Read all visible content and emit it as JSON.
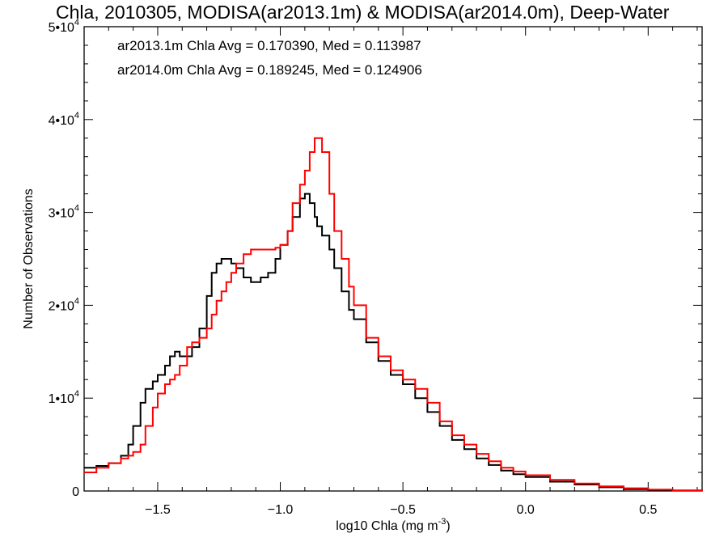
{
  "chart_data": {
    "type": "line",
    "title": "Chla, 2010305, MODISA(ar2013.1m) & MODISA(ar2014.0m), Deep-Water",
    "xlabel": "log10 Chla (mg m",
    "xlabel_sup": "-3",
    "xlabel_tail": ")",
    "ylabel": "Number of Observations",
    "xlim": [
      -1.8,
      0.72
    ],
    "ylim": [
      0,
      50000
    ],
    "xticks": [
      {
        "v": -1.5,
        "label": "−1.5"
      },
      {
        "v": -1.0,
        "label": "−1.0"
      },
      {
        "v": -0.5,
        "label": "−0.5"
      },
      {
        "v": 0.0,
        "label": "0.0"
      },
      {
        "v": 0.5,
        "label": "0.5"
      }
    ],
    "yticks": [
      {
        "v": 0,
        "base": "0",
        "exp": ""
      },
      {
        "v": 10000,
        "base": "1•10",
        "exp": "4"
      },
      {
        "v": 20000,
        "base": "2•10",
        "exp": "4"
      },
      {
        "v": 30000,
        "base": "3•10",
        "exp": "4"
      },
      {
        "v": 40000,
        "base": "4•10",
        "exp": "4"
      },
      {
        "v": 50000,
        "base": "5•10",
        "exp": "4"
      }
    ],
    "annotations": [
      {
        "text": "ar2013.1m Chla Avg = 0.170390, Med = 0.113987",
        "color": "#000000"
      },
      {
        "text": "ar2014.0m Chla Avg = 0.189245, Med = 0.124906",
        "color": "#ff0000"
      }
    ],
    "series": [
      {
        "color": "#000000",
        "x": [
          -1.8,
          -1.75,
          -1.7,
          -1.65,
          -1.62,
          -1.6,
          -1.57,
          -1.55,
          -1.52,
          -1.5,
          -1.47,
          -1.45,
          -1.43,
          -1.41,
          -1.38,
          -1.36,
          -1.33,
          -1.3,
          -1.28,
          -1.26,
          -1.24,
          -1.22,
          -1.2,
          -1.18,
          -1.15,
          -1.12,
          -1.1,
          -1.08,
          -1.05,
          -1.02,
          -1.0,
          -0.97,
          -0.95,
          -0.92,
          -0.9,
          -0.88,
          -0.86,
          -0.85,
          -0.83,
          -0.8,
          -0.78,
          -0.75,
          -0.72,
          -0.7,
          -0.65,
          -0.6,
          -0.55,
          -0.5,
          -0.45,
          -0.4,
          -0.35,
          -0.3,
          -0.25,
          -0.2,
          -0.15,
          -0.1,
          -0.05,
          0.0,
          0.1,
          0.2,
          0.3,
          0.4,
          0.5,
          0.6,
          0.72
        ],
        "y": [
          2500,
          2700,
          3000,
          3800,
          5000,
          7000,
          9500,
          11000,
          11800,
          12500,
          13500,
          14500,
          15000,
          14500,
          14500,
          15500,
          17500,
          21000,
          23500,
          24500,
          25000,
          25000,
          24500,
          24000,
          23000,
          22500,
          22500,
          23000,
          23500,
          25000,
          26500,
          28000,
          29500,
          31500,
          32000,
          31000,
          29500,
          28500,
          27500,
          26000,
          24000,
          21500,
          19500,
          18500,
          16000,
          14000,
          12500,
          11500,
          10000,
          8500,
          7000,
          5500,
          4500,
          3500,
          2800,
          2200,
          1800,
          1500,
          1000,
          700,
          400,
          200,
          100,
          50,
          20
        ]
      },
      {
        "color": "#ff0000",
        "x": [
          -1.8,
          -1.75,
          -1.7,
          -1.65,
          -1.62,
          -1.6,
          -1.57,
          -1.55,
          -1.52,
          -1.5,
          -1.47,
          -1.45,
          -1.43,
          -1.41,
          -1.38,
          -1.36,
          -1.33,
          -1.3,
          -1.28,
          -1.26,
          -1.24,
          -1.22,
          -1.2,
          -1.18,
          -1.15,
          -1.12,
          -1.1,
          -1.08,
          -1.05,
          -1.02,
          -1.0,
          -0.97,
          -0.95,
          -0.92,
          -0.9,
          -0.88,
          -0.86,
          -0.85,
          -0.83,
          -0.8,
          -0.78,
          -0.75,
          -0.72,
          -0.7,
          -0.65,
          -0.6,
          -0.55,
          -0.5,
          -0.45,
          -0.4,
          -0.35,
          -0.3,
          -0.25,
          -0.2,
          -0.15,
          -0.1,
          -0.05,
          0.0,
          0.1,
          0.2,
          0.3,
          0.4,
          0.5,
          0.6,
          0.72
        ],
        "y": [
          2000,
          2500,
          3000,
          3500,
          3800,
          4200,
          5000,
          7000,
          9000,
          10500,
          11500,
          12000,
          12500,
          13500,
          15500,
          16000,
          16500,
          17500,
          19000,
          20500,
          21500,
          22500,
          23500,
          24500,
          25500,
          26000,
          26000,
          26000,
          26000,
          26200,
          26500,
          28000,
          31000,
          33000,
          34500,
          36500,
          38000,
          38000,
          36500,
          32000,
          28000,
          25000,
          22000,
          20000,
          16500,
          14500,
          13000,
          12000,
          11000,
          9500,
          7500,
          6000,
          5000,
          4000,
          3200,
          2500,
          2100,
          1700,
          1200,
          800,
          500,
          300,
          150,
          60,
          20
        ]
      }
    ]
  }
}
